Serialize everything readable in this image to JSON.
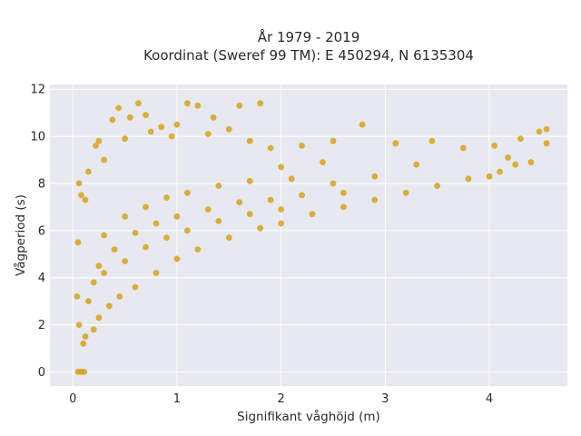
{
  "chart_data": {
    "type": "scatter",
    "title": "År 1979 - 2019",
    "subtitle": "Koordinat (Sweref 99 TM): E 450294, N 6135304",
    "xlabel": "Signifikant våghöjd (m)",
    "ylabel": "Vågperiod (s)",
    "xlim": [
      -0.22,
      4.75
    ],
    "ylim": [
      -0.6,
      12.2
    ],
    "xticks": [
      0,
      1,
      2,
      3,
      4
    ],
    "yticks": [
      0,
      2,
      4,
      6,
      8,
      10,
      12
    ],
    "grid": true,
    "legend": "none",
    "colors": {
      "marker": "#d4a21e",
      "plot_bg": "#e8e8f0",
      "grid": "#ffffff"
    },
    "series": [
      {
        "points": [
          [
            0.05,
            0.0
          ],
          [
            0.08,
            0.0
          ],
          [
            0.11,
            0.0
          ],
          [
            0.06,
            8.0
          ],
          [
            0.08,
            7.5
          ],
          [
            0.05,
            5.5
          ],
          [
            0.04,
            3.2
          ],
          [
            0.06,
            2.0
          ],
          [
            0.1,
            1.2
          ],
          [
            0.12,
            1.5
          ],
          [
            0.2,
            1.8
          ],
          [
            0.25,
            2.3
          ],
          [
            0.35,
            2.8
          ],
          [
            0.45,
            3.2
          ],
          [
            0.6,
            3.6
          ],
          [
            0.8,
            4.2
          ],
          [
            1.0,
            4.8
          ],
          [
            1.2,
            5.2
          ],
          [
            1.5,
            5.7
          ],
          [
            1.8,
            6.1
          ],
          [
            2.0,
            6.3
          ],
          [
            2.3,
            6.7
          ],
          [
            2.6,
            7.0
          ],
          [
            2.9,
            7.3
          ],
          [
            3.2,
            7.6
          ],
          [
            3.5,
            7.9
          ],
          [
            3.8,
            8.2
          ],
          [
            4.0,
            8.3
          ],
          [
            4.1,
            8.5
          ],
          [
            4.25,
            8.8
          ],
          [
            4.4,
            8.9
          ],
          [
            4.55,
            9.7
          ],
          [
            4.55,
            10.3
          ],
          [
            4.48,
            10.2
          ],
          [
            4.3,
            9.9
          ],
          [
            4.18,
            9.1
          ],
          [
            4.05,
            9.6
          ],
          [
            3.75,
            9.5
          ],
          [
            3.45,
            9.8
          ],
          [
            3.1,
            9.7
          ],
          [
            2.78,
            10.5
          ],
          [
            2.5,
            9.8
          ],
          [
            2.2,
            9.6
          ],
          [
            1.9,
            9.5
          ],
          [
            1.8,
            11.4
          ],
          [
            1.6,
            11.3
          ],
          [
            1.35,
            10.8
          ],
          [
            1.2,
            11.3
          ],
          [
            1.1,
            11.4
          ],
          [
            1.0,
            10.5
          ],
          [
            0.85,
            10.4
          ],
          [
            0.7,
            10.9
          ],
          [
            0.63,
            11.4
          ],
          [
            0.55,
            10.8
          ],
          [
            0.44,
            11.2
          ],
          [
            0.38,
            10.7
          ],
          [
            0.25,
            9.8
          ],
          [
            0.22,
            9.6
          ],
          [
            0.15,
            8.5
          ],
          [
            0.12,
            7.3
          ],
          [
            0.3,
            9.0
          ],
          [
            0.5,
            9.9
          ],
          [
            0.75,
            10.2
          ],
          [
            0.95,
            10.0
          ],
          [
            1.3,
            10.1
          ],
          [
            1.5,
            10.3
          ],
          [
            1.7,
            9.8
          ],
          [
            2.0,
            8.7
          ],
          [
            2.4,
            8.9
          ],
          [
            3.3,
            8.8
          ],
          [
            0.3,
            5.8
          ],
          [
            0.5,
            6.6
          ],
          [
            0.7,
            7.0
          ],
          [
            0.9,
            7.4
          ],
          [
            1.1,
            7.6
          ],
          [
            1.4,
            7.9
          ],
          [
            1.7,
            8.1
          ],
          [
            2.1,
            8.2
          ],
          [
            2.5,
            8.0
          ],
          [
            2.9,
            8.3
          ],
          [
            0.25,
            4.5
          ],
          [
            0.4,
            5.2
          ],
          [
            0.6,
            5.9
          ],
          [
            0.8,
            6.3
          ],
          [
            1.0,
            6.6
          ],
          [
            1.3,
            6.9
          ],
          [
            1.6,
            7.2
          ],
          [
            1.9,
            7.3
          ],
          [
            2.2,
            7.5
          ],
          [
            2.6,
            7.6
          ],
          [
            0.15,
            3.0
          ],
          [
            0.2,
            3.8
          ],
          [
            0.3,
            4.2
          ],
          [
            0.5,
            4.7
          ],
          [
            0.7,
            5.3
          ],
          [
            0.9,
            5.7
          ],
          [
            1.1,
            6.0
          ],
          [
            1.4,
            6.4
          ],
          [
            1.7,
            6.7
          ],
          [
            2.0,
            6.9
          ]
        ]
      }
    ]
  }
}
